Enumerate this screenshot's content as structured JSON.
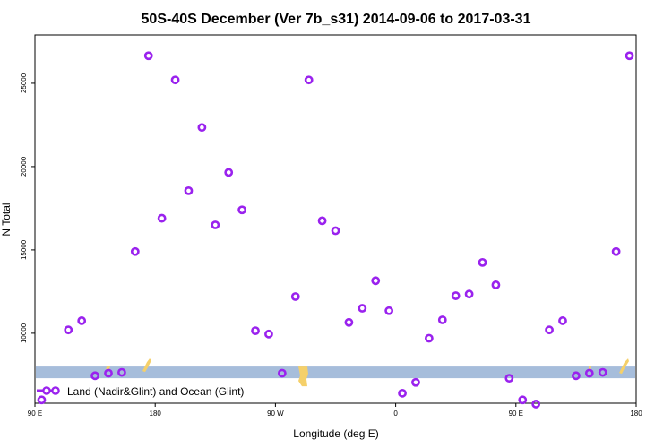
{
  "chart_data": {
    "type": "scatter",
    "title": "50S-40S December (Ver 7b_s31)   2014-09-06 to 2017-03-31",
    "xlabel": "Longitude (deg E)",
    "ylabel": "N Total",
    "xlim": [
      90,
      540
    ],
    "ylim": [
      5800,
      27900
    ],
    "x_ticks": [
      {
        "value": 90,
        "label": "90 E"
      },
      {
        "value": 180,
        "label": "180"
      },
      {
        "value": 270,
        "label": "90 W"
      },
      {
        "value": 360,
        "label": "0"
      },
      {
        "value": 450,
        "label": "90 E"
      },
      {
        "value": 540,
        "label": "180"
      }
    ],
    "y_ticks": [
      {
        "value": 10000,
        "label": "10000"
      },
      {
        "value": 15000,
        "label": "15000"
      },
      {
        "value": 20000,
        "label": "20000"
      },
      {
        "value": 25000,
        "label": "25000"
      }
    ],
    "series": [
      {
        "name": "Land (Nadir&Glint) and Ocean (Glint)",
        "color": "#9a22ee",
        "x": [
          95,
          115,
          125,
          135,
          145,
          155,
          165,
          175,
          185,
          195,
          205,
          215,
          225,
          235,
          245,
          255,
          265,
          275,
          285,
          295,
          305,
          315,
          325,
          335,
          345,
          355,
          365,
          375,
          385,
          395,
          405,
          415,
          425,
          435,
          445,
          455,
          465,
          475,
          485,
          495,
          505,
          515,
          525,
          535
        ],
        "y": [
          6000,
          10200,
          10750,
          7450,
          7600,
          7650,
          14900,
          26650,
          16900,
          25200,
          18550,
          22350,
          16500,
          19650,
          17400,
          10150,
          9950,
          7600,
          12200,
          25200,
          16750,
          16150,
          10650,
          11500,
          13150,
          11350,
          6400,
          7050,
          9700,
          10800,
          12250,
          12350,
          14250,
          12900,
          7300,
          6000,
          5750,
          10200,
          10750,
          7450,
          7600,
          7650,
          14900,
          26650
        ]
      }
    ],
    "land_band": {
      "y_range": [
        7300,
        8000
      ],
      "band_color": "#a6bddb",
      "land_color": "#f5d06a"
    },
    "legend_position": "bottom-left",
    "grid": false
  }
}
